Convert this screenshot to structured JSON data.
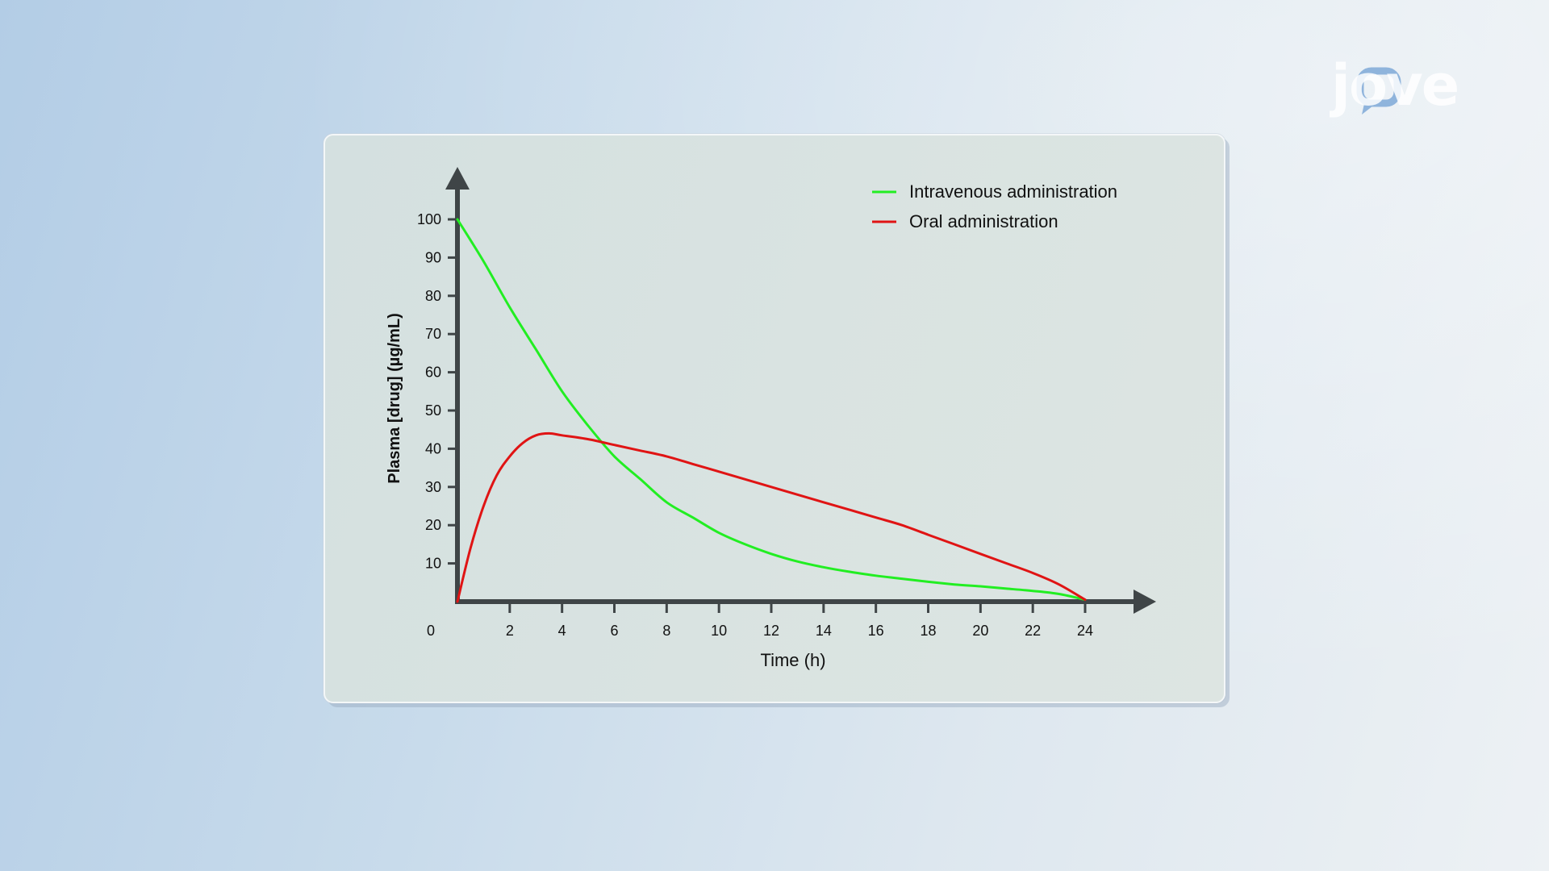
{
  "logo": {
    "text": "jove",
    "icon": "jove-logo"
  },
  "chart_data": {
    "type": "line",
    "title": "",
    "xlabel": "Time (h)",
    "ylabel": "Plasma [drug] (µg/mL)",
    "xlim": [
      0,
      24
    ],
    "ylim": [
      0,
      100
    ],
    "x_ticks": [
      0,
      2,
      4,
      6,
      8,
      10,
      12,
      14,
      16,
      18,
      20,
      22,
      24
    ],
    "y_ticks": [
      10,
      20,
      30,
      40,
      50,
      60,
      70,
      80,
      90,
      100
    ],
    "x_tick_labels": [
      "0",
      "2",
      "4",
      "6",
      "8",
      "10",
      "12",
      "14",
      "16",
      "18",
      "20",
      "22",
      "24"
    ],
    "y_tick_labels": [
      "10",
      "20",
      "30",
      "40",
      "50",
      "60",
      "70",
      "80",
      "90",
      "100"
    ],
    "grid": false,
    "legend_position": "top-right",
    "series": [
      {
        "name": "Intravenous administration",
        "color": "#22ee22",
        "x": [
          0,
          1,
          2,
          3,
          4,
          5,
          6,
          7,
          8,
          9,
          10,
          11,
          12,
          13,
          14,
          15,
          16,
          17,
          18,
          19,
          20,
          21,
          22,
          23,
          24
        ],
        "y": [
          100,
          89,
          77,
          66,
          55,
          46,
          38,
          32,
          26,
          22,
          18,
          15,
          12.5,
          10.5,
          9,
          7.8,
          6.8,
          6,
          5.2,
          4.5,
          4,
          3.4,
          2.8,
          2,
          0.5
        ]
      },
      {
        "name": "Oral administration",
        "color": "#e01414",
        "x": [
          0,
          0.5,
          1,
          1.5,
          2,
          2.5,
          3,
          3.5,
          4,
          5,
          6,
          7,
          8,
          9,
          10,
          11,
          12,
          13,
          14,
          15,
          16,
          17,
          18,
          19,
          20,
          21,
          22,
          23,
          24
        ],
        "y": [
          0,
          14,
          25,
          33,
          38,
          41.5,
          43.5,
          44,
          43.5,
          42.5,
          41,
          39.5,
          38,
          36,
          34,
          32,
          30,
          28,
          26,
          24,
          22,
          20,
          17.5,
          15,
          12.5,
          10,
          7.5,
          4.5,
          0.5
        ]
      }
    ]
  }
}
